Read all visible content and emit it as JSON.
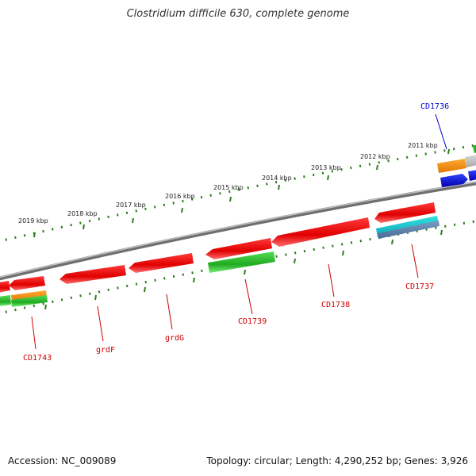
{
  "title": "Clostridium difficile 630, complete genome",
  "footer": {
    "accession": "Accession: NC_009089",
    "summary": "Topology: circular; Length: 4,290,252 bp; Genes: 3,926"
  },
  "colors": {
    "backbone": "#8a8a8a",
    "tick": "#2e7d1e",
    "label_red": "#cc0000",
    "label_blue": "#0000cc"
  },
  "kbp_ticks": [
    "2011 kbp",
    "2012 kbp",
    "2013 kbp",
    "2014 kbp",
    "2015 kbp",
    "2016 kbp",
    "2017 kbp",
    "2018 kbp",
    "2019 kbp"
  ],
  "gene_labels": [
    {
      "id": "CD1736",
      "color": "blue"
    },
    {
      "id": "CD1737",
      "color": "red"
    },
    {
      "id": "CD1738",
      "color": "red"
    },
    {
      "id": "CD1739",
      "color": "red"
    },
    {
      "id": "grdG",
      "color": "red"
    },
    {
      "id": "grdF",
      "color": "red"
    },
    {
      "id": "CD1743",
      "color": "red"
    }
  ]
}
